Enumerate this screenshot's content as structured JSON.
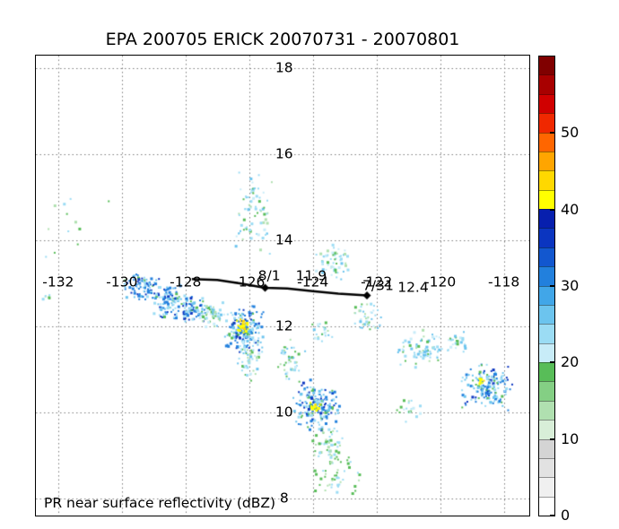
{
  "title": "EPA 200705 ERICK 20070731 - 20070801",
  "caption": "PR near surface reflectivity (dBZ)",
  "chart_data": {
    "type": "scatter",
    "title": "EPA 200705 ERICK 20070731 - 20070801",
    "subtitle": "PR near surface reflectivity (dBZ)",
    "xlabel": "",
    "ylabel": "",
    "xlim": [
      -132.7,
      -117.2
    ],
    "ylim": [
      7.6,
      18.3
    ],
    "x_ticks": [
      -132,
      -130,
      -128,
      -126,
      -124,
      -122,
      -120,
      -118
    ],
    "y_ticks": [
      8,
      10,
      12,
      14,
      16,
      18
    ],
    "grid": "dotted",
    "legend_position": "right-colorbar",
    "colorbar": {
      "min": 0,
      "max": 60,
      "unit": "dBZ",
      "ticks": [
        0,
        10,
        20,
        30,
        40,
        50
      ],
      "colors": [
        "#ffffff",
        "#f0f0f0",
        "#e2e2e2",
        "#d4d4d4",
        "#d8eed8",
        "#b0e0b0",
        "#84cf84",
        "#58bd58",
        "#c8ecf8",
        "#9bdcf4",
        "#6cc4ee",
        "#41a6e8",
        "#2280dd",
        "#1257cf",
        "#0b35c0",
        "#071fae",
        "#ffff00",
        "#ffd800",
        "#ffa500",
        "#ff6600",
        "#f02800",
        "#d00000",
        "#a80000",
        "#800000"
      ]
    },
    "storm_track": {
      "points": [
        [
          -127.8,
          13.1
        ],
        [
          -127.0,
          13.08
        ],
        [
          -126.3,
          13.0
        ],
        [
          -125.5,
          12.9
        ],
        [
          -124.8,
          12.88
        ],
        [
          -124.0,
          12.82
        ],
        [
          -123.2,
          12.76
        ],
        [
          -122.3,
          12.72
        ]
      ],
      "markers": [
        [
          -125.5,
          12.9
        ],
        [
          -122.3,
          12.72
        ]
      ],
      "labels": [
        {
          "text": "8/1",
          "lon": -125.37,
          "lat": 13.17
        },
        {
          "text": "11.9",
          "lon": -124.05,
          "lat": 13.17
        },
        {
          "text": "7/31",
          "lon": -121.95,
          "lat": 12.93
        },
        {
          "text": "12.4",
          "lon": -120.85,
          "lat": 12.9
        }
      ]
    },
    "palettes": {
      "convective": [
        [
          "#9bdcf4",
          0.22
        ],
        [
          "#6cc4ee",
          0.2
        ],
        [
          "#2280dd",
          0.3
        ],
        [
          "#0b35c0",
          0.18
        ],
        [
          "#58bd58",
          0.1
        ]
      ],
      "light_mix": [
        [
          "#c8ecf8",
          0.2
        ],
        [
          "#9bdcf4",
          0.3
        ],
        [
          "#6cc4ee",
          0.2
        ],
        [
          "#b0e0b0",
          0.15
        ],
        [
          "#58bd58",
          0.15
        ]
      ],
      "green_sparse": [
        [
          "#58bd58",
          0.4
        ],
        [
          "#b0e0b0",
          0.3
        ],
        [
          "#9bdcf4",
          0.3
        ]
      ],
      "core_yellow": [
        [
          "#ffff00",
          0.65
        ],
        [
          "#ffd800",
          0.35
        ]
      ]
    },
    "reflectivity_clusters": [
      {
        "lon": -129.35,
        "lat": 12.95,
        "rx": 0.5,
        "ry": 0.3,
        "n": 85,
        "palette": "convective"
      },
      {
        "lon": -128.6,
        "lat": 12.6,
        "rx": 0.5,
        "ry": 0.35,
        "n": 110,
        "palette": "convective"
      },
      {
        "lon": -127.85,
        "lat": 12.4,
        "rx": 0.45,
        "ry": 0.3,
        "n": 80,
        "palette": "convective"
      },
      {
        "lon": -127.15,
        "lat": 12.3,
        "rx": 0.4,
        "ry": 0.25,
        "n": 55,
        "palette": "light_mix"
      },
      {
        "lon": -126.2,
        "lat": 11.95,
        "rx": 0.5,
        "ry": 0.45,
        "n": 170,
        "palette": "convective"
      },
      {
        "lon": -126.25,
        "lat": 12.02,
        "rx": 0.17,
        "ry": 0.13,
        "n": 28,
        "palette": "core_yellow"
      },
      {
        "lon": -126.0,
        "lat": 11.3,
        "rx": 0.3,
        "ry": 0.5,
        "n": 60,
        "palette": "light_mix"
      },
      {
        "lon": -124.7,
        "lat": 11.2,
        "rx": 0.35,
        "ry": 0.45,
        "n": 45,
        "palette": "light_mix"
      },
      {
        "lon": -123.9,
        "lat": 10.2,
        "rx": 0.6,
        "ry": 0.5,
        "n": 180,
        "palette": "convective"
      },
      {
        "lon": -123.95,
        "lat": 10.18,
        "rx": 0.14,
        "ry": 0.1,
        "n": 14,
        "palette": "core_yellow"
      },
      {
        "lon": -123.55,
        "lat": 9.3,
        "rx": 0.45,
        "ry": 0.4,
        "n": 55,
        "palette": "green_sparse"
      },
      {
        "lon": -123.3,
        "lat": 8.55,
        "rx": 0.65,
        "ry": 0.4,
        "n": 50,
        "palette": "green_sparse"
      },
      {
        "lon": -118.6,
        "lat": 10.6,
        "rx": 0.7,
        "ry": 0.45,
        "n": 165,
        "palette": "convective"
      },
      {
        "lon": -118.75,
        "lat": 10.75,
        "rx": 0.1,
        "ry": 0.08,
        "n": 9,
        "palette": "core_yellow"
      },
      {
        "lon": -120.6,
        "lat": 11.5,
        "rx": 0.6,
        "ry": 0.35,
        "n": 80,
        "palette": "light_mix"
      },
      {
        "lon": -119.6,
        "lat": 11.65,
        "rx": 0.35,
        "ry": 0.2,
        "n": 25,
        "palette": "light_mix"
      },
      {
        "lon": -125.9,
        "lat": 14.7,
        "rx": 0.5,
        "ry": 0.85,
        "n": 75,
        "palette": "light_mix"
      },
      {
        "lon": -123.4,
        "lat": 13.5,
        "rx": 0.55,
        "ry": 0.4,
        "n": 60,
        "palette": "light_mix"
      },
      {
        "lon": -122.3,
        "lat": 12.25,
        "rx": 0.45,
        "ry": 0.25,
        "n": 40,
        "palette": "light_mix"
      },
      {
        "lon": -123.8,
        "lat": 11.9,
        "rx": 0.3,
        "ry": 0.25,
        "n": 22,
        "palette": "light_mix"
      },
      {
        "lon": -121.0,
        "lat": 10.1,
        "rx": 0.35,
        "ry": 0.25,
        "n": 20,
        "palette": "light_mix"
      },
      {
        "lon": -131.3,
        "lat": 14.3,
        "rx": 1.2,
        "ry": 1.1,
        "n": 12,
        "palette": "green_sparse"
      },
      {
        "lon": -132.45,
        "lat": 12.7,
        "rx": 0.15,
        "ry": 0.12,
        "n": 6,
        "palette": "light_mix"
      }
    ]
  }
}
